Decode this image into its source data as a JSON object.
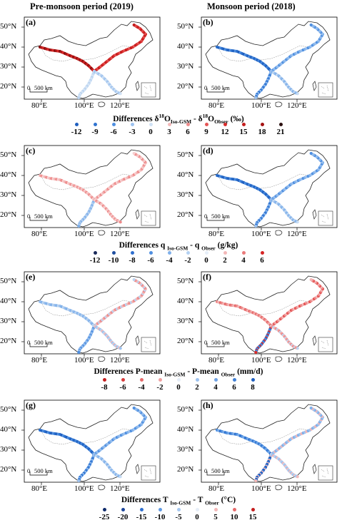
{
  "columns": {
    "left": "Pre-monsoon period (2019)",
    "right": "Monsoon period (2018)"
  },
  "axes": {
    "lat": [
      "50°N",
      "40°N",
      "30°N",
      "20°N"
    ],
    "lon": [
      "80°E",
      "100°E",
      "120°E"
    ]
  },
  "scale_bar": {
    "zero": "0",
    "dist": "500 km"
  },
  "panels": [
    {
      "id": "a",
      "label": "(a)",
      "pattern": "hot"
    },
    {
      "id": "b",
      "label": "(b)",
      "pattern": "cold"
    },
    {
      "id": "c",
      "label": "(c)",
      "pattern": "pinkish"
    },
    {
      "id": "d",
      "label": "(d)",
      "pattern": "cold"
    },
    {
      "id": "e",
      "label": "(e)",
      "pattern": "mixed"
    },
    {
      "id": "f",
      "label": "(f)",
      "pattern": "hotmix"
    },
    {
      "id": "g",
      "label": "(g)",
      "pattern": "cold"
    },
    {
      "id": "h",
      "label": "(h)",
      "pattern": "mixedcold"
    }
  ],
  "legends": [
    {
      "id": "d18o",
      "title": {
        "pre": "Differences δ",
        "sup": "18",
        "mid": "O",
        "sub": "Iso-GSM",
        "mid2": " - δ",
        "sup2": "18",
        "mid3": "O",
        "sub2": "Obser",
        "unit": " (‰)"
      },
      "values": [
        "-12",
        "-9",
        "-6",
        "-3",
        "0",
        "3",
        "6",
        "9",
        "12",
        "15",
        "18",
        "21"
      ],
      "colors": [
        "#1f5fbf",
        "#2f73d0",
        "#4f8fe0",
        "#9dc2ef",
        "#d0e2f5",
        "#f3b8b8",
        "#ee8a8a",
        "#e45454",
        "#d92b2b",
        "#c41d1d",
        "#a41212",
        "#2b1010"
      ]
    },
    {
      "id": "q",
      "title": {
        "pre": "Differences q ",
        "sub": "Iso-GSM",
        "mid2": " - q ",
        "sub2": "Obser",
        "unit": " (g/kg)"
      },
      "values": [
        "-12",
        "-10",
        "-8",
        "-6",
        "-4",
        "-2",
        "0",
        "2",
        "4",
        "6"
      ],
      "colors": [
        "#1a2a5a",
        "#1f4fa0",
        "#2f6fcf",
        "#4f8fe0",
        "#7fb0ea",
        "#b4d1f2",
        "#e6eef8",
        "#f3b8b8",
        "#ea7a7a",
        "#d62424"
      ]
    },
    {
      "id": "p",
      "title": {
        "pre": "Differences P-mean ",
        "sub": "Iso-GSM",
        "mid2": " - P-mean ",
        "sub2": "Obser",
        "unit": " (mm/d)"
      },
      "values": [
        "-8",
        "-6",
        "-4",
        "-2",
        "0",
        "2",
        "4",
        "6",
        "8"
      ],
      "colors": [
        "#c41d1d",
        "#d83a3a",
        "#e66a6a",
        "#f0a0a0",
        "#e6eef8",
        "#9dc2ef",
        "#6fa3e6",
        "#3f7fd6",
        "#1f5fbf"
      ]
    },
    {
      "id": "t",
      "title": {
        "pre": "Differences T ",
        "sub": "Iso-GSM",
        "mid2": " - T ",
        "sub2": "Obser",
        "unit": " (°C)"
      },
      "values": [
        "-25",
        "-20",
        "-15",
        "-10",
        "-5",
        "0",
        "5",
        "10",
        "15"
      ],
      "colors": [
        "#0e2a6a",
        "#1b4499",
        "#2f6fcf",
        "#5f99e2",
        "#a6c8f0",
        "#e6eef8",
        "#f3b8b8",
        "#e66a6a",
        "#c41d1d"
      ]
    }
  ]
}
